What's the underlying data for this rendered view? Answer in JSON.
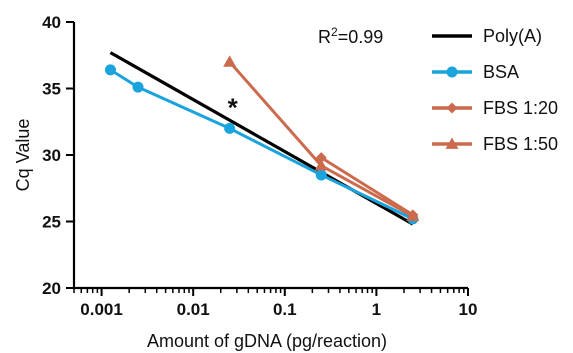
{
  "chart_data": {
    "type": "line",
    "xlabel": "Amount of gDNA (pg/reaction)",
    "ylabel": "Cq Value",
    "x_scale": "log",
    "xlim": [
      0.0005,
      10
    ],
    "ylim": [
      20,
      40
    ],
    "x_ticks": [
      0.001,
      0.01,
      0.1,
      1,
      10
    ],
    "x_tick_labels": [
      "0.001",
      "0.01",
      "0.1",
      "1",
      "10"
    ],
    "y_ticks": [
      20,
      25,
      30,
      35,
      40
    ],
    "y_tick_labels": [
      "20",
      "25",
      "30",
      "35",
      "40"
    ],
    "grid": false,
    "legend_position": "top-right",
    "series": [
      {
        "name": "Poly(A)",
        "color": "#000000",
        "marker": "none",
        "x": [
          0.00125,
          2.5
        ],
        "y": [
          37.7,
          24.8
        ]
      },
      {
        "name": "BSA",
        "color": "#1aa3dc",
        "marker": "circle",
        "x": [
          0.00125,
          0.0025,
          0.025,
          0.25,
          2.5
        ],
        "y": [
          36.4,
          35.1,
          32.0,
          28.5,
          25.2
        ]
      },
      {
        "name": "FBS 1:20",
        "color": "#cc6a4e",
        "marker": "diamond",
        "x": [
          0.25,
          2.5
        ],
        "y": [
          29.8,
          25.5
        ]
      },
      {
        "name": "FBS 1:50",
        "color": "#cc6a4e",
        "marker": "triangle",
        "x": [
          0.025,
          0.25,
          2.5
        ],
        "y": [
          37.0,
          29.2,
          25.4
        ]
      }
    ],
    "annotations": [
      {
        "text": "R²=0.99"
      },
      {
        "text": "*",
        "x": 0.027,
        "y": 33.8
      }
    ]
  }
}
